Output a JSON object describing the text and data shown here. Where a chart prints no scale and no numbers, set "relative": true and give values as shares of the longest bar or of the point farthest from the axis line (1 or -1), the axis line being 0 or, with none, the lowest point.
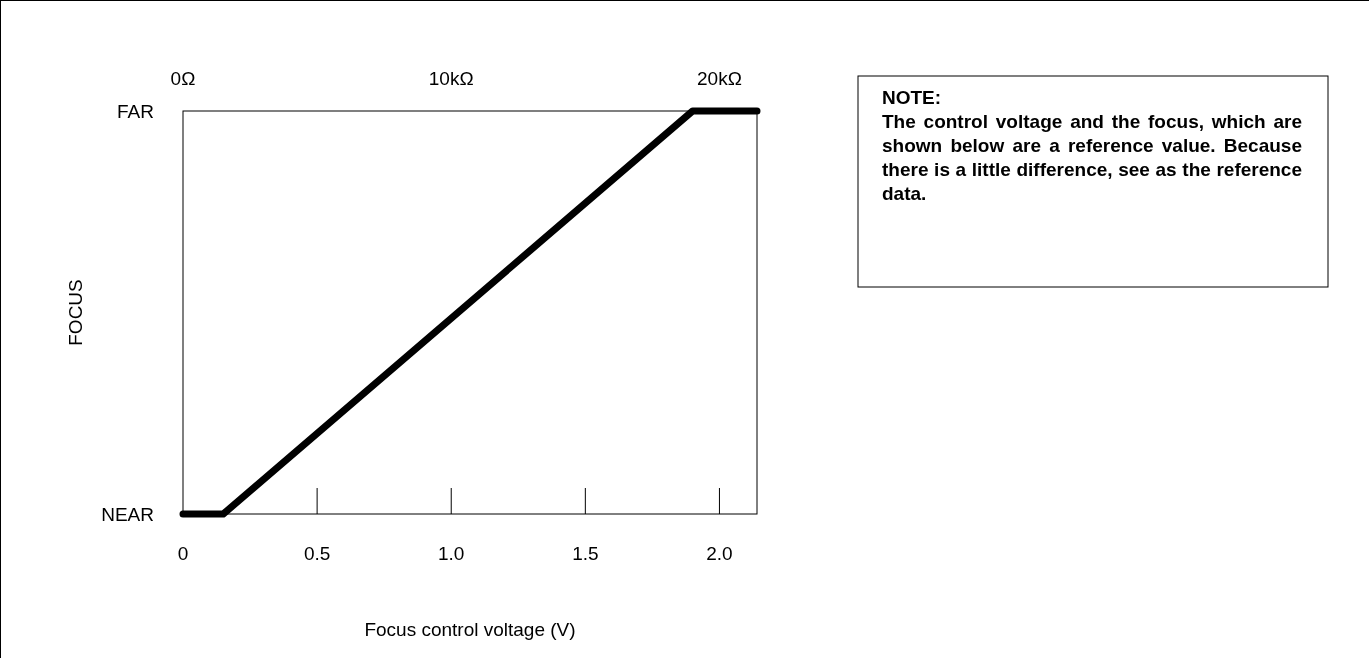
{
  "chart_data": {
    "type": "line",
    "xlabel": "Focus control voltage (V)",
    "ylabel": "FOCUS",
    "x": [
      0,
      0.15,
      1.9,
      2.14
    ],
    "series": [
      {
        "color": "#000000",
        "values": [
          0,
          0,
          1,
          1
        ]
      }
    ],
    "xlim": [
      0,
      2.14
    ],
    "xticks": [
      {
        "value": 0,
        "label": "0"
      },
      {
        "value": 0.5,
        "label": "0.5"
      },
      {
        "value": 1,
        "label": "1.0"
      },
      {
        "value": 1.5,
        "label": "1.5"
      },
      {
        "value": 2,
        "label": "2.0"
      }
    ],
    "relative": true,
    "x2lim": [
      0,
      21.4
    ],
    "x2ticks": [
      {
        "value": 0,
        "label": "0Ω"
      },
      {
        "value": 10,
        "label": "10kΩ"
      },
      {
        "value": 20,
        "label": "20kΩ"
      }
    ],
    "annotations": [
      "FAR",
      "NEAR",
      "NOTE:",
      "The control voltage and the focus, which are shown below are a reference value. Because there is a little difference, see as the reference data."
    ],
    "grid": false,
    "marker": "none",
    "line_style": "solid"
  }
}
